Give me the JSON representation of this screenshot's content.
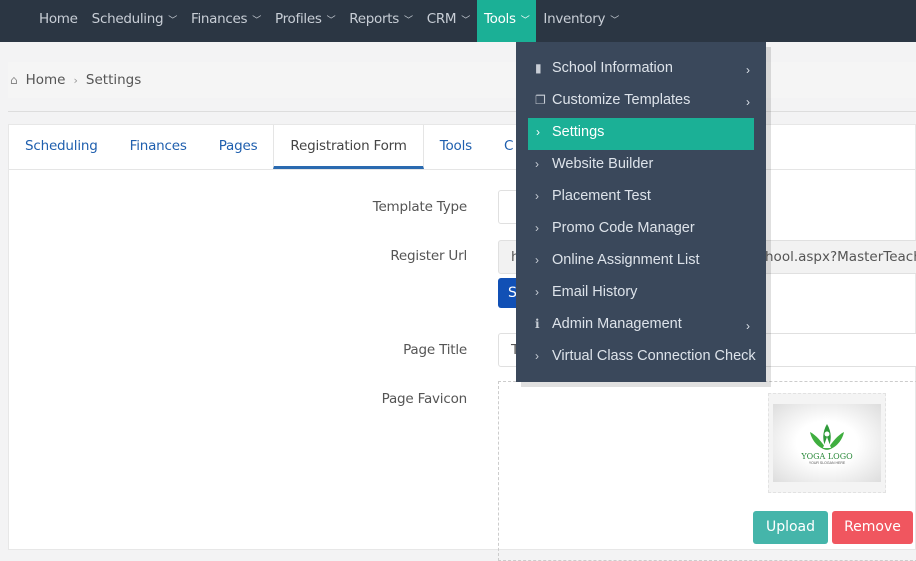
{
  "nav": {
    "items": [
      {
        "label": "Home",
        "chevron": false
      },
      {
        "label": "Scheduling",
        "chevron": true
      },
      {
        "label": "Finances",
        "chevron": true
      },
      {
        "label": "Profiles",
        "chevron": true
      },
      {
        "label": "Reports",
        "chevron": true
      },
      {
        "label": "CRM",
        "chevron": true
      },
      {
        "label": "Tools",
        "chevron": true,
        "active": true
      },
      {
        "label": "Inventory",
        "chevron": true
      }
    ],
    "chevron": "⌄"
  },
  "breadcrumb": {
    "home": "Home",
    "sep": "›",
    "current": "Settings"
  },
  "tabs": [
    "Scheduling",
    "Finances",
    "Pages",
    "Registration Form",
    "Tools",
    "C"
  ],
  "form": {
    "template_type_label": "Template Type",
    "register_url_label": "Register Url",
    "register_url_start": "h",
    "register_url_end": "hool.aspx?MasterTeach",
    "url_button": "S",
    "page_title_label": "Page Title",
    "page_title_value": "T",
    "favicon_label": "Page Favicon",
    "logo_text": "YOGA LOGO",
    "logo_slogan": "YOUR SLOGAN HERE",
    "upload": "Upload",
    "remove": "Remove"
  },
  "menu": {
    "items": [
      {
        "label": "School Information",
        "icon": "building-icon",
        "sub": true
      },
      {
        "label": "Customize Templates",
        "icon": "copy-icon",
        "sub": true
      },
      {
        "label": "Settings",
        "icon": "chevron-right-icon",
        "active": true
      },
      {
        "label": "Website Builder",
        "icon": "chevron-right-icon"
      },
      {
        "label": "Placement Test",
        "icon": "chevron-right-icon"
      },
      {
        "label": "Promo Code Manager",
        "icon": "chevron-right-icon"
      },
      {
        "label": "Online Assignment List",
        "icon": "chevron-right-icon"
      },
      {
        "label": "Email History",
        "icon": "chevron-right-icon"
      },
      {
        "label": "Admin Management",
        "icon": "info-icon",
        "sub": true
      },
      {
        "label": "Virtual Class Connection Check",
        "icon": "chevron-right-icon"
      }
    ]
  },
  "colors": {
    "nav": "#2b3643",
    "accent": "#1bb096",
    "menu": "#3a485b",
    "upload": "#45b5aa",
    "remove": "#f0565f",
    "link": "#1f5fae"
  }
}
